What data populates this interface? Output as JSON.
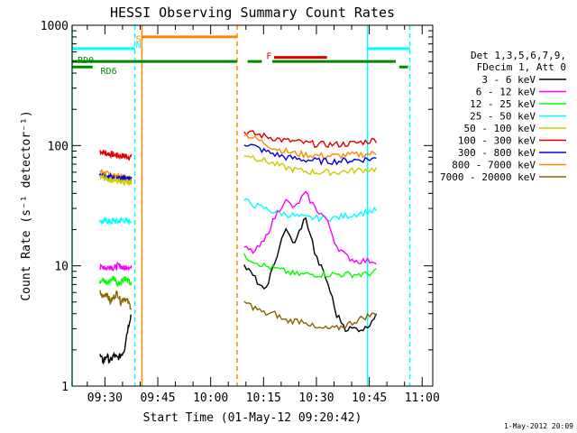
{
  "chart_data": {
    "type": "line",
    "title": "HESSI Observing Summary Count Rates",
    "xlabel": "Start Time (01-May-12 09:20:42)",
    "ylabel": "Count Rate (s⁻¹ detector⁻¹)",
    "x_unit": "time",
    "xlim": [
      "09:20:42",
      "11:03:00"
    ],
    "x_ticks": [
      "09:30",
      "09:45",
      "10:00",
      "10:15",
      "10:30",
      "10:45",
      "11:00"
    ],
    "y_scale": "log",
    "ylim": [
      1,
      1000
    ],
    "y_ticks": [
      "1",
      "10",
      "100",
      "1000"
    ],
    "date_stamp": "1-May-2012 20:09",
    "legend": {
      "header": [
        "Det 1,3,5,6,7,9,",
        "FDecim 1, Att 0"
      ],
      "placement": "right",
      "entries": [
        {
          "label": "3 - 6 keV",
          "color": "#000000"
        },
        {
          "label": "6 - 12 keV",
          "color": "#ff00ff"
        },
        {
          "label": "12 - 25 keV",
          "color": "#00ff00"
        },
        {
          "label": "25 - 50 keV",
          "color": "#00ffff"
        },
        {
          "label": "50 - 100 keV",
          "color": "#cccc00"
        },
        {
          "label": "100 - 300 keV",
          "color": "#dd0000"
        },
        {
          "label": "300 - 800 keV",
          "color": "#0000dd"
        },
        {
          "label": "800 - 7000 keV",
          "color": "#ff8800"
        },
        {
          "label": "7000 - 20000 keV",
          "color": "#886600"
        }
      ]
    },
    "flags": [
      {
        "label": "S",
        "color": "#ff8800",
        "start": "09:39:30",
        "end": "09:39:30"
      },
      {
        "label": "N",
        "color": "#00ffff",
        "start": "09:38:30",
        "end": "09:38:30"
      },
      {
        "label": "F",
        "color": "#dd0000",
        "start": "10:18:00",
        "end": "10:33:00"
      },
      {
        "label": "RD0",
        "color": "#008800",
        "start": "09:20:42",
        "end": "10:23:30"
      },
      {
        "label": "RD6",
        "color": "#008800",
        "start": "09:20:42",
        "end": "10:23:30"
      }
    ],
    "flag_bars": [
      {
        "name": "SAA orange",
        "color": "#ff8800",
        "start": "09:40:30",
        "end": "10:07:30",
        "level": 800
      },
      {
        "name": "night cyan left",
        "color": "#00ffff",
        "start": "09:20:42",
        "end": "09:38:30",
        "level": 640
      },
      {
        "name": "night cyan right",
        "color": "#00ffff",
        "start": "10:44:30",
        "end": "10:56:30",
        "level": 640
      },
      {
        "name": "flare red",
        "color": "#dd0000",
        "start": "10:18:00",
        "end": "10:33:00",
        "level": 540
      },
      {
        "name": "RD0 green",
        "color": "#008800",
        "start": "09:20:42",
        "end": "10:07:30",
        "level": 500
      },
      {
        "name": "RD0 green b",
        "color": "#008800",
        "start": "10:10:30",
        "end": "10:14:30",
        "level": 500
      },
      {
        "name": "RD0 green c",
        "color": "#008800",
        "start": "10:17:30",
        "end": "10:52:30",
        "level": 500
      },
      {
        "name": "RD6 green a",
        "color": "#008800",
        "start": "09:20:42",
        "end": "09:26:30",
        "level": 450
      },
      {
        "name": "RD6 green b",
        "color": "#008800",
        "start": "10:53:30",
        "end": "10:56:00",
        "level": 450
      }
    ],
    "vlines": [
      {
        "time": "09:20:42",
        "color": "#00ffff",
        "dashed": false
      },
      {
        "time": "09:38:30",
        "color": "#00ffff",
        "dashed": true
      },
      {
        "time": "09:40:30",
        "color": "#ff8800",
        "dashed": false
      },
      {
        "time": "10:07:30",
        "color": "#ff8800",
        "dashed": true
      },
      {
        "time": "10:44:30",
        "color": "#00ffff",
        "dashed": false
      },
      {
        "time": "10:56:30",
        "color": "#00ffff",
        "dashed": true
      }
    ],
    "segments": [
      {
        "start": "09:28:30",
        "end": "09:37:30",
        "series": [
          {
            "name": "100 - 300 keV",
            "color": "#dd0000",
            "values": [
              90,
              88,
              86,
              85,
              84,
              83,
              82,
              82,
              81,
              80
            ]
          },
          {
            "name": "800 - 7000 keV",
            "color": "#ff8800",
            "values": [
              62,
              60,
              58,
              57,
              56,
              55,
              55,
              54,
              54,
              53
            ]
          },
          {
            "name": "300 - 800 keV",
            "color": "#0000dd",
            "values": [
              58,
              57,
              56,
              55,
              54,
              54,
              53,
              53,
              52,
              52
            ]
          },
          {
            "name": "50 - 100 keV",
            "color": "#cccc00",
            "values": [
              55,
              54,
              53,
              52,
              52,
              51,
              51,
              50,
              50,
              50
            ]
          },
          {
            "name": "25 - 50 keV",
            "color": "#00ffff",
            "values": [
              24,
              23,
              24,
              23,
              24,
              23,
              24,
              24,
              23,
              24
            ]
          },
          {
            "name": "6 - 12 keV",
            "color": "#ff00ff",
            "values": [
              9.5,
              10,
              9.5,
              10,
              9.5,
              10,
              10,
              9.5,
              10,
              9.5
            ]
          },
          {
            "name": "12 - 25 keV",
            "color": "#00ff00",
            "values": [
              7.5,
              8,
              7,
              7.5,
              8,
              7,
              7.5,
              8,
              7.5,
              7
            ]
          },
          {
            "name": "7000 - 20000 keV",
            "color": "#886600",
            "values": [
              6,
              5.5,
              6,
              5,
              5.5,
              6,
              5,
              5.5,
              5,
              4.5
            ]
          },
          {
            "name": "3 - 6 keV",
            "color": "#000000",
            "values": [
              1.8,
              1.6,
              1.8,
              1.6,
              1.8,
              1.7,
              1.8,
              2.0,
              3.0,
              4.0
            ]
          }
        ]
      },
      {
        "start": "10:09:30",
        "end": "10:47:00",
        "series": [
          {
            "name": "100 - 300 keV",
            "color": "#dd0000",
            "values": [
              130,
              125,
              120,
              115,
              110,
              108,
              105,
              103,
              102,
              102,
              103,
              105,
              108,
              112
            ]
          },
          {
            "name": "800 - 7000 keV",
            "color": "#ff8800",
            "values": [
              125,
              115,
              105,
              95,
              90,
              86,
              84,
              83,
              82,
              82,
              83,
              84,
              85,
              86
            ]
          },
          {
            "name": "300 - 800 keV",
            "color": "#0000dd",
            "values": [
              105,
              98,
              90,
              85,
              80,
              78,
              76,
              75,
              74,
              74,
              75,
              76,
              77,
              78
            ]
          },
          {
            "name": "50 - 100 keV",
            "color": "#cccc00",
            "values": [
              85,
              80,
              75,
              70,
              66,
              63,
              61,
              60,
              60,
              60,
              61,
              62,
              63,
              64
            ]
          },
          {
            "name": "25 - 50 keV",
            "color": "#00ffff",
            "values": [
              35,
              32,
              30,
              28,
              27,
              26,
              25,
              25,
              25,
              25,
              26,
              27,
              28,
              29
            ]
          },
          {
            "name": "6 - 12 keV",
            "color": "#ff00ff",
            "values": [
              14,
              13,
              16,
              25,
              35,
              30,
              40,
              30,
              25,
              15,
              12,
              11,
              11,
              11
            ]
          },
          {
            "name": "3 - 6 keV",
            "color": "#000000",
            "values": [
              10,
              8,
              6,
              10,
              20,
              15,
              25,
              12,
              8,
              4,
              3,
              3,
              3,
              4
            ]
          },
          {
            "name": "12 - 25 keV",
            "color": "#00ff00",
            "values": [
              12,
              11,
              10,
              9.5,
              9,
              8.5,
              8.5,
              8.5,
              8.5,
              8.5,
              8.5,
              8.5,
              8.5,
              9
            ]
          },
          {
            "name": "7000 - 20000 keV",
            "color": "#886600",
            "values": [
              5,
              4.5,
              4,
              4,
              3.5,
              3.5,
              3.5,
              3,
              3,
              3,
              3.2,
              3.5,
              3.8,
              4
            ]
          }
        ]
      }
    ]
  }
}
